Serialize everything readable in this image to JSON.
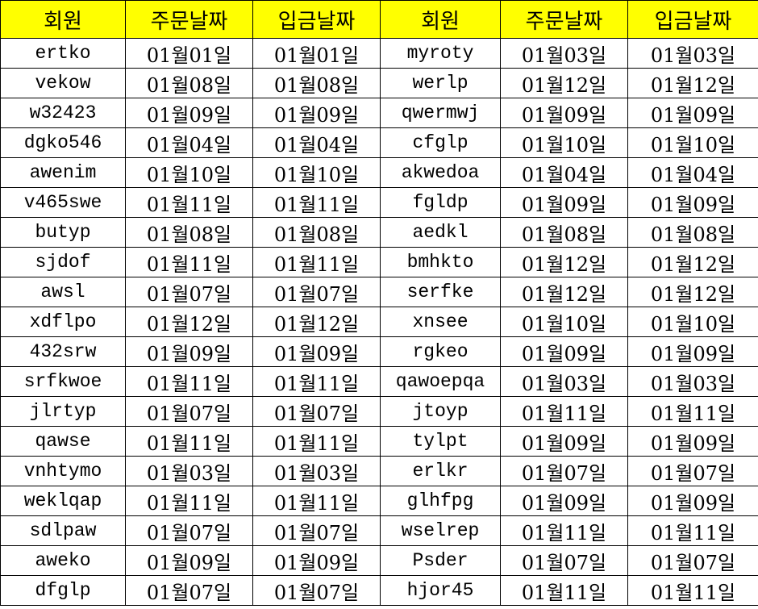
{
  "table": {
    "header": [
      "회원",
      "주문날짜",
      "입금날짜",
      "회원",
      "주문날짜",
      "입금날짜"
    ],
    "rows": [
      [
        "ertko",
        "01월01일",
        "01월01일",
        "myroty",
        "01월03일",
        "01월03일"
      ],
      [
        "vekow",
        "01월08일",
        "01월08일",
        "werlp",
        "01월12일",
        "01월12일"
      ],
      [
        "w32423",
        "01월09일",
        "01월09일",
        "qwermwj",
        "01월09일",
        "01월09일"
      ],
      [
        "dgko546",
        "01월04일",
        "01월04일",
        "cfglp",
        "01월10일",
        "01월10일"
      ],
      [
        "awenim",
        "01월10일",
        "01월10일",
        "akwedoa",
        "01월04일",
        "01월04일"
      ],
      [
        "v465swe",
        "01월11일",
        "01월11일",
        "fgldp",
        "01월09일",
        "01월09일"
      ],
      [
        "butyp",
        "01월08일",
        "01월08일",
        "aedkl",
        "01월08일",
        "01월08일"
      ],
      [
        "sjdof",
        "01월11일",
        "01월11일",
        "bmhkto",
        "01월12일",
        "01월12일"
      ],
      [
        "awsl",
        "01월07일",
        "01월07일",
        "serfke",
        "01월12일",
        "01월12일"
      ],
      [
        "xdflpo",
        "01월12일",
        "01월12일",
        "xnsee",
        "01월10일",
        "01월10일"
      ],
      [
        "432srw",
        "01월09일",
        "01월09일",
        "rgkeo",
        "01월09일",
        "01월09일"
      ],
      [
        "srfkwoe",
        "01월11일",
        "01월11일",
        "qawoepqa",
        "01월03일",
        "01월03일"
      ],
      [
        "jlrtyp",
        "01월07일",
        "01월07일",
        "jtoyp",
        "01월11일",
        "01월11일"
      ],
      [
        "qawse",
        "01월11일",
        "01월11일",
        "tylpt",
        "01월09일",
        "01월09일"
      ],
      [
        "vnhtymo",
        "01월03일",
        "01월03일",
        "erlkr",
        "01월07일",
        "01월07일"
      ],
      [
        "weklqap",
        "01월11일",
        "01월11일",
        "glhfpg",
        "01월09일",
        "01월09일"
      ],
      [
        "sdlpaw",
        "01월07일",
        "01월07일",
        "wselrep",
        "01월11일",
        "01월11일"
      ],
      [
        "aweko",
        "01월09일",
        "01월09일",
        "Psder",
        "01월07일",
        "01월07일"
      ],
      [
        "dfglp",
        "01월07일",
        "01월07일",
        "hjor45",
        "01월11일",
        "01월11일"
      ]
    ]
  }
}
